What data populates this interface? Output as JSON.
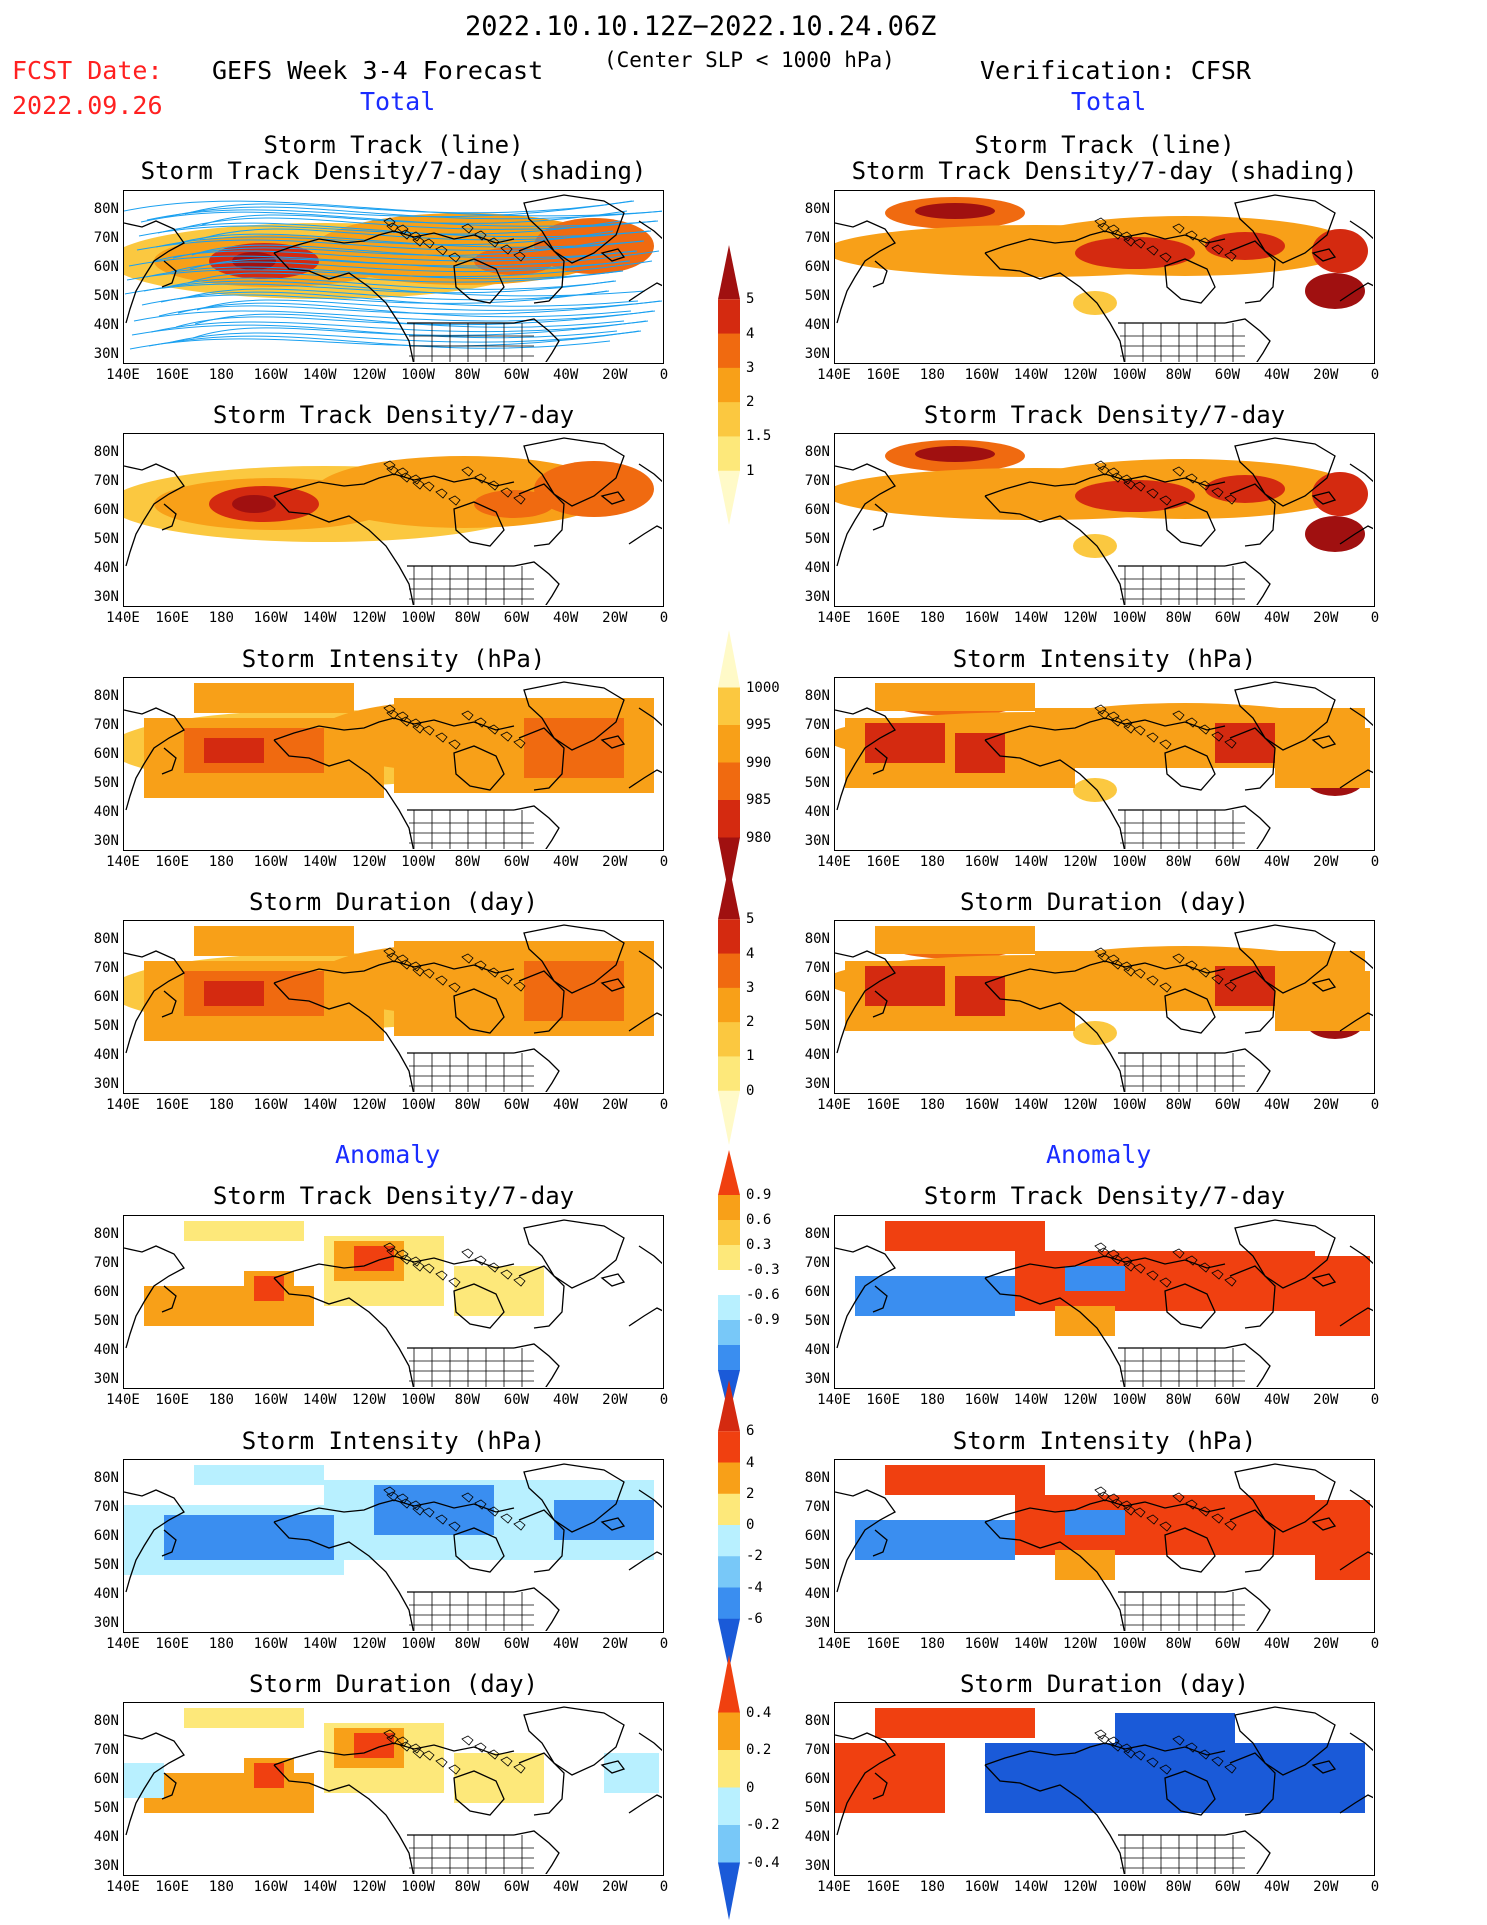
{
  "header": {
    "date_range": "2022.10.10.12Z−2022.10.24.06Z",
    "fcst_label": "FCST Date:",
    "fcst_date": "2022.09.26",
    "forecast_title": "GEFS Week 3-4 Forecast",
    "criterion": "(Center SLP < 1000 hPa)",
    "verification": "Verification: CFSR"
  },
  "sections": {
    "total": "Total",
    "anomaly": "Anomaly"
  },
  "axes": {
    "y_ticks": [
      "80N",
      "70N",
      "60N",
      "50N",
      "40N",
      "30N"
    ],
    "x_ticks": [
      "140E",
      "160E",
      "180",
      "160W",
      "140W",
      "120W",
      "100W",
      "80W",
      "60W",
      "40W",
      "20W",
      "0"
    ]
  },
  "rows": [
    {
      "title_line1": "Storm Track (line)",
      "title_line2": "Storm Track Density/7-day (shading)"
    },
    {
      "title_line1": "Storm Track Density/7-day",
      "title_line2": ""
    },
    {
      "title_line1": "Storm Intensity (hPa)",
      "title_line2": ""
    },
    {
      "title_line1": "Storm Duration (day)",
      "title_line2": ""
    },
    {
      "title_line1": "Storm Track Density/7-day",
      "title_line2": ""
    },
    {
      "title_line1": "Storm Intensity (hPa)",
      "title_line2": ""
    },
    {
      "title_line1": "Storm Duration (day)",
      "title_line2": ""
    }
  ],
  "colorbars": [
    {
      "labels": [
        "5",
        "4",
        "3",
        "2",
        "1.5",
        "1"
      ],
      "colors": [
        "#a01010",
        "#d42a10",
        "#f06a10",
        "#f8a018",
        "#fbc840",
        "#fde87a",
        "#fffac8"
      ]
    },
    {
      "labels": [
        "1000",
        "995",
        "990",
        "985",
        "980"
      ],
      "colors": [
        "#fffac8",
        "#fbc840",
        "#f8a018",
        "#f06a10",
        "#d42a10",
        "#a01010"
      ]
    },
    {
      "labels": [
        "5",
        "4",
        "3",
        "2",
        "1",
        "0"
      ],
      "colors": [
        "#a01010",
        "#d42a10",
        "#f06a10",
        "#f8a018",
        "#fbc840",
        "#fde87a",
        "#fffac8"
      ]
    },
    {
      "labels": [
        "0.9",
        "0.6",
        "0.3",
        "-0.3",
        "-0.6",
        "-0.9"
      ],
      "colors": [
        "#f04010",
        "#f8a018",
        "#fbc840",
        "#fde87a",
        "#ffffff",
        "#b8f0ff",
        "#78c8f8",
        "#3a8ef0",
        "#1a5ad8"
      ]
    },
    {
      "labels": [
        "6",
        "4",
        "2",
        "0",
        "-2",
        "-4",
        "-6"
      ],
      "colors": [
        "#d42a10",
        "#f04010",
        "#f8a018",
        "#fde87a",
        "#b8f0ff",
        "#78c8f8",
        "#3a8ef0",
        "#1a5ad8"
      ]
    },
    {
      "labels": [
        "0.4",
        "0.2",
        "0",
        "-0.2",
        "-0.4"
      ],
      "colors": [
        "#f04010",
        "#f8a018",
        "#fde87a",
        "#b8f0ff",
        "#78c8f8",
        "#1a5ad8"
      ]
    }
  ],
  "palette": {
    "density": [
      "#fffac8",
      "#fde87a",
      "#fbc840",
      "#f8a018",
      "#f06a10",
      "#d42a10",
      "#a01010"
    ],
    "anomaly_warm": [
      "#fde87a",
      "#f8a018",
      "#f04010"
    ],
    "anomaly_cool": [
      "#b8f0ff",
      "#3a8ef0",
      "#1a5ad8"
    ],
    "track_line": "#1aa0f0",
    "title_red": "#ff2020",
    "section_blue": "#1a2cff"
  }
}
